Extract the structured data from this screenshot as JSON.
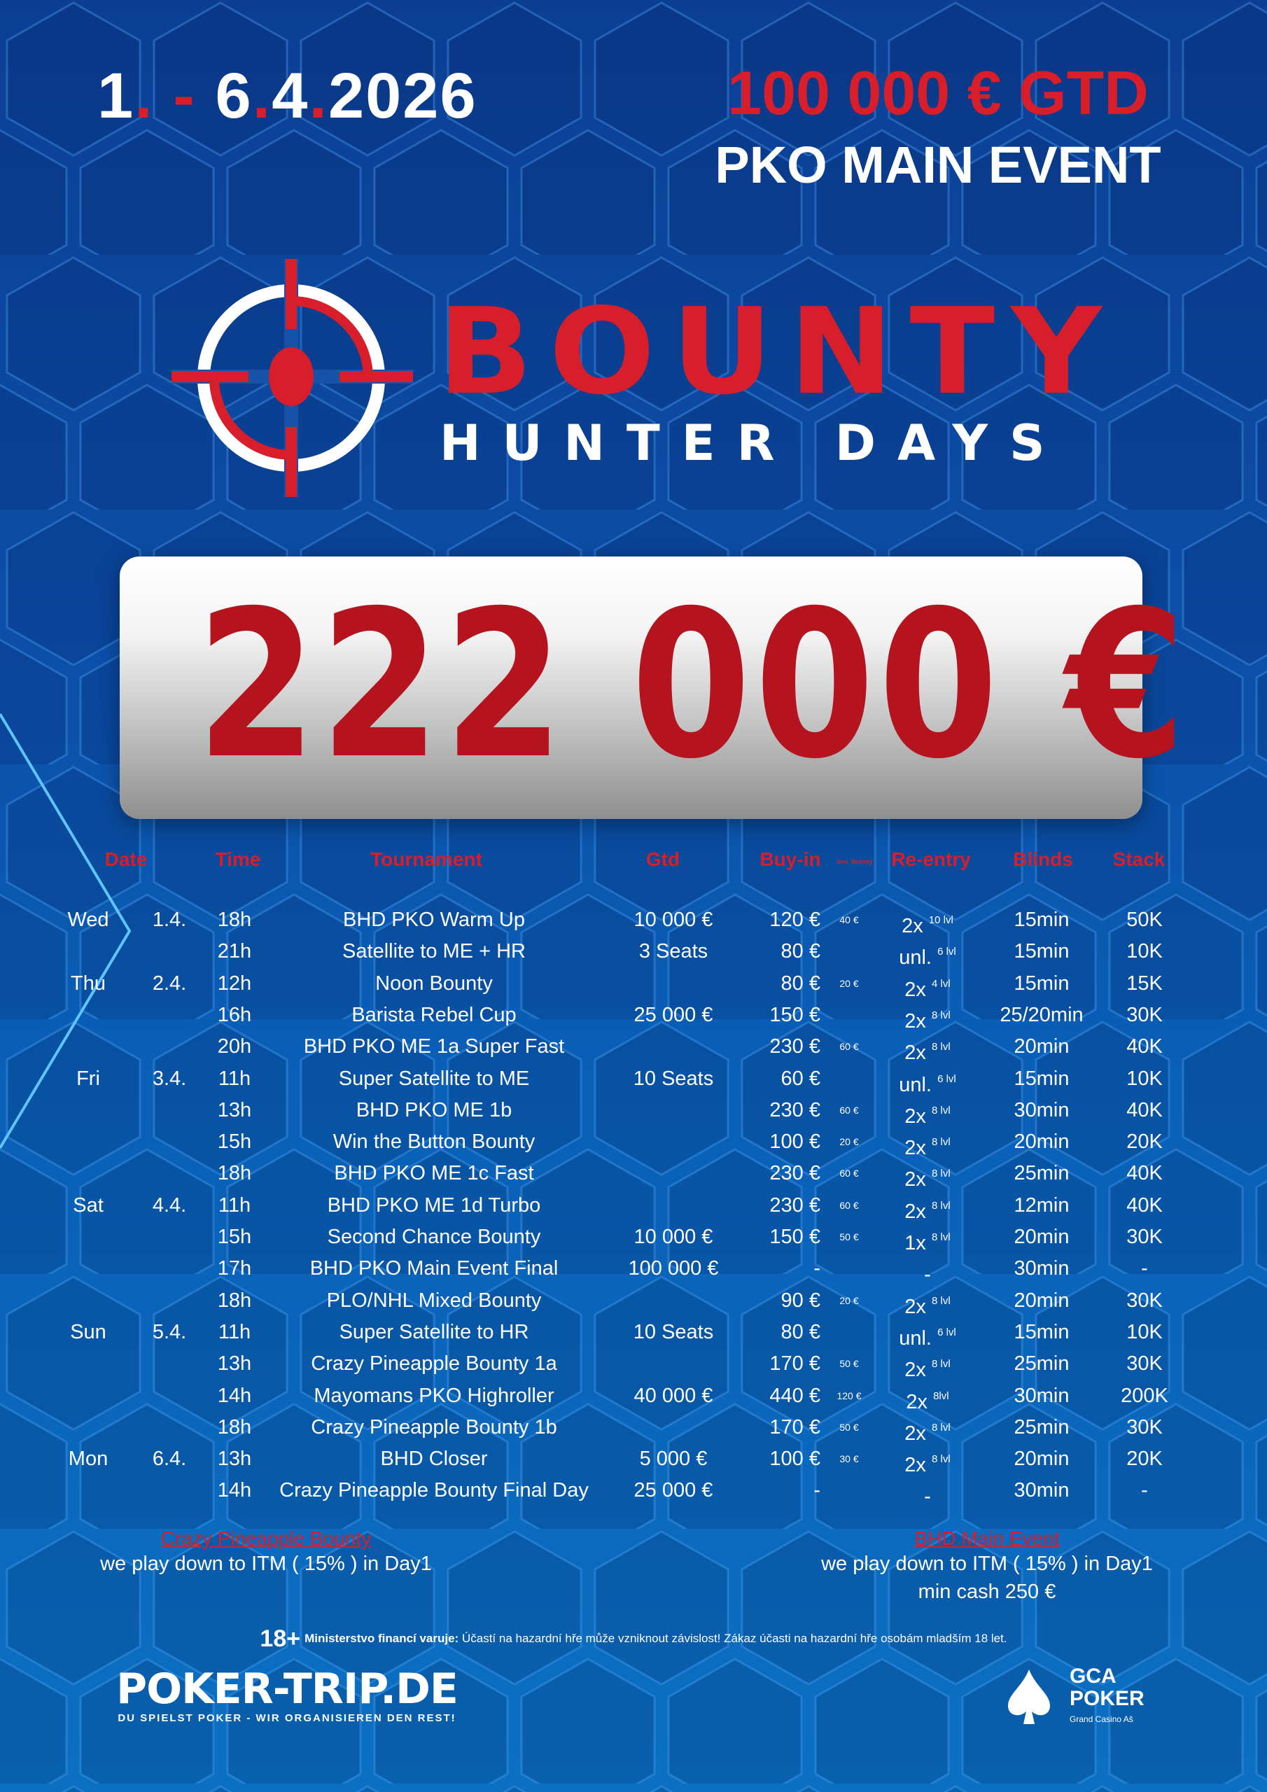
{
  "header": {
    "dates_parts": [
      "1",
      ".",
      " - ",
      "6",
      ".",
      "4",
      ".",
      "2026"
    ],
    "guarantee": "100 000 € GTD",
    "event": "PKO MAIN EVENT"
  },
  "logo": {
    "title_line1": "BOUNTY",
    "title_line2": "HUNTER DAYS",
    "icon": "crosshair-icon"
  },
  "prize_pool": "222 000 €",
  "table": {
    "headers": {
      "date": "Date",
      "time": "Time",
      "tournament": "Tournament",
      "gtd": "Gtd",
      "buyin": "Buy-in",
      "bounty_note": "incl. Bounty",
      "reentry": "Re-entry",
      "blinds": "Blinds",
      "stack": "Stack"
    },
    "rows": [
      {
        "day": "Wed",
        "date": "1.4.",
        "time": "18h",
        "name": "BHD PKO Warm Up",
        "gtd": "10 000 €",
        "buyin": "120 €",
        "bounty": "40 €",
        "reentry": "2x",
        "levels": "10 lvl",
        "blinds": "15min",
        "stack": "50K"
      },
      {
        "day": "",
        "date": "",
        "time": "21h",
        "name": "Satellite to ME + HR",
        "gtd": "3 Seats",
        "buyin": "80 €",
        "bounty": "",
        "reentry": "unl.",
        "levels": "6 lvl",
        "blinds": "15min",
        "stack": "10K"
      },
      {
        "day": "Thu",
        "date": "2.4.",
        "time": "12h",
        "name": "Noon Bounty",
        "gtd": "",
        "buyin": "80 €",
        "bounty": "20 €",
        "reentry": "2x",
        "levels": "4 lvl",
        "blinds": "15min",
        "stack": "15K"
      },
      {
        "day": "",
        "date": "",
        "time": "16h",
        "name": "Barista Rebel Cup",
        "gtd": "25 000 €",
        "buyin": "150 €",
        "bounty": "",
        "reentry": "2x",
        "levels": "8 lvl",
        "blinds": "25/20min",
        "stack": "30K"
      },
      {
        "day": "",
        "date": "",
        "time": "20h",
        "name": "BHD PKO ME 1a Super Fast",
        "gtd": "",
        "buyin": "230 €",
        "bounty": "60 €",
        "reentry": "2x",
        "levels": "8 lvl",
        "blinds": "20min",
        "stack": "40K"
      },
      {
        "day": "Fri",
        "date": "3.4.",
        "time": "11h",
        "name": "Super Satellite to ME",
        "gtd": "10 Seats",
        "buyin": "60 €",
        "bounty": "",
        "reentry": "unl.",
        "levels": "6 lvl",
        "blinds": "15min",
        "stack": "10K"
      },
      {
        "day": "",
        "date": "",
        "time": "13h",
        "name": "BHD PKO ME 1b",
        "gtd": "",
        "buyin": "230 €",
        "bounty": "60 €",
        "reentry": "2x",
        "levels": "8 lvl",
        "blinds": "30min",
        "stack": "40K"
      },
      {
        "day": "",
        "date": "",
        "time": "15h",
        "name": "Win the Button Bounty",
        "gtd": "",
        "buyin": "100 €",
        "bounty": "20 €",
        "reentry": "2x",
        "levels": "8 lvl",
        "blinds": "20min",
        "stack": "20K"
      },
      {
        "day": "",
        "date": "",
        "time": "18h",
        "name": "BHD PKO ME 1c Fast",
        "gtd": "",
        "buyin": "230 €",
        "bounty": "60 €",
        "reentry": "2x",
        "levels": "8 lvl",
        "blinds": "25min",
        "stack": "40K"
      },
      {
        "day": "Sat",
        "date": "4.4.",
        "time": "11h",
        "name": "BHD PKO ME 1d Turbo",
        "gtd": "",
        "buyin": "230 €",
        "bounty": "60 €",
        "reentry": "2x",
        "levels": "8 lvl",
        "blinds": "12min",
        "stack": "40K"
      },
      {
        "day": "",
        "date": "",
        "time": "15h",
        "name": "Second Chance Bounty",
        "gtd": "10 000 €",
        "buyin": "150 €",
        "bounty": "50 €",
        "reentry": "1x",
        "levels": "8 lvl",
        "blinds": "20min",
        "stack": "30K"
      },
      {
        "day": "",
        "date": "",
        "time": "17h",
        "name": "BHD PKO Main Event Final",
        "gtd": "100 000 €",
        "buyin": "-",
        "bounty": "",
        "reentry": "-",
        "levels": "",
        "blinds": "30min",
        "stack": "-"
      },
      {
        "day": "",
        "date": "",
        "time": "18h",
        "name": "PLO/NHL Mixed Bounty",
        "gtd": "",
        "buyin": "90 €",
        "bounty": "20 €",
        "reentry": "2x",
        "levels": "8 lvl",
        "blinds": "20min",
        "stack": "30K"
      },
      {
        "day": "Sun",
        "date": "5.4.",
        "time": "11h",
        "name": "Super Satellite to HR",
        "gtd": "10 Seats",
        "buyin": "80 €",
        "bounty": "",
        "reentry": "unl.",
        "levels": "6 lvl",
        "blinds": "15min",
        "stack": "10K"
      },
      {
        "day": "",
        "date": "",
        "time": "13h",
        "name": "Crazy Pineapple Bounty 1a",
        "gtd": "",
        "buyin": "170 €",
        "bounty": "50 €",
        "reentry": "2x",
        "levels": "8 lvl",
        "blinds": "25min",
        "stack": "30K"
      },
      {
        "day": "",
        "date": "",
        "time": "14h",
        "name": "Mayomans PKO Highroller",
        "gtd": "40 000 €",
        "buyin": "440 €",
        "bounty": "120 €",
        "reentry": "2x",
        "levels": "8lvl",
        "blinds": "30min",
        "stack": "200K"
      },
      {
        "day": "",
        "date": "",
        "time": "18h",
        "name": "Crazy Pineapple Bounty 1b",
        "gtd": "",
        "buyin": "170 €",
        "bounty": "50 €",
        "reentry": "2x",
        "levels": "8 lvl",
        "blinds": "25min",
        "stack": "30K"
      },
      {
        "day": "Mon",
        "date": "6.4.",
        "time": "13h",
        "name": "BHD Closer",
        "gtd": "5 000 €",
        "buyin": "100 €",
        "bounty": "30 €",
        "reentry": "2x",
        "levels": "8 lvl",
        "blinds": "20min",
        "stack": "20K"
      },
      {
        "day": "",
        "date": "",
        "time": "14h",
        "name": "Crazy Pineapple Bounty Final Day",
        "gtd": "25 000 €",
        "buyin": "-",
        "bounty": "",
        "reentry": "-",
        "levels": "",
        "blinds": "30min",
        "stack": "-"
      }
    ]
  },
  "notes": {
    "left": {
      "title": "Crazy Pineapple Bounty",
      "lines": [
        "we play down to ITM ( 15% ) in Day1"
      ]
    },
    "right": {
      "title": "BHD Main Event",
      "lines": [
        "we play down to ITM ( 15% ) in Day1",
        "min cash 250 €"
      ]
    }
  },
  "legal": {
    "age": "18+",
    "bold": "Ministerstvo financí varuje:",
    "text": " Účastí na hazardní hře může vzniknout závislost! Zákaz účasti na hazardní hře osobám mladším 18 let."
  },
  "sponsors": {
    "poker_trip": {
      "name": "POKER-TRIP.DE",
      "tagline": "DU SPIELST POKER - WIR ORGANISIEREN DEN REST!"
    },
    "gca": {
      "line1": "GCA",
      "line2": "POKER",
      "line3": "Grand Casino Aš"
    }
  },
  "colors": {
    "accent_red": "#d81e2a",
    "background_blue": "#0c4ea8",
    "prize_red": "#b5141f"
  }
}
